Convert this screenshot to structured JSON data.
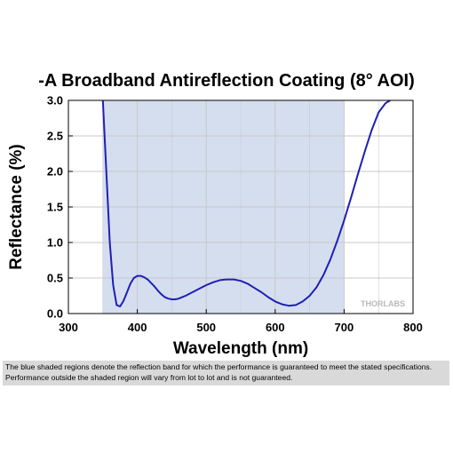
{
  "chart_data": {
    "type": "line",
    "title": "-A Broadband Antireflection Coating (8° AOI)",
    "xlabel": "Wavelength (nm)",
    "ylabel": "Reflectance (%)",
    "xlim": [
      300,
      800
    ],
    "ylim": [
      0,
      3.0
    ],
    "xticks": [
      "300",
      "400",
      "500",
      "600",
      "700",
      "800"
    ],
    "yticks": [
      "0.0",
      "0.5",
      "1.0",
      "1.5",
      "2.0",
      "2.5",
      "3.0"
    ],
    "grid": true,
    "shaded_band": [
      350,
      700
    ],
    "colors": {
      "line": "#1f1fb4",
      "band": "#d5deef",
      "grid": "#c8c8c8"
    },
    "series": [
      {
        "x": [
          350,
          355,
          360,
          365,
          370,
          375,
          380,
          385,
          390,
          395,
          400,
          405,
          410,
          415,
          420,
          425,
          430,
          435,
          440,
          445,
          450,
          455,
          460,
          465,
          470,
          480,
          490,
          500,
          510,
          520,
          530,
          540,
          550,
          560,
          570,
          580,
          590,
          600,
          610,
          620,
          630,
          640,
          650,
          660,
          670,
          680,
          690,
          700,
          710,
          720,
          730,
          740,
          750,
          760,
          767
        ],
        "y": [
          3.0,
          2.0,
          1.0,
          0.4,
          0.12,
          0.1,
          0.18,
          0.3,
          0.42,
          0.5,
          0.53,
          0.53,
          0.51,
          0.48,
          0.43,
          0.38,
          0.32,
          0.27,
          0.23,
          0.21,
          0.2,
          0.2,
          0.21,
          0.23,
          0.25,
          0.3,
          0.35,
          0.4,
          0.44,
          0.47,
          0.48,
          0.48,
          0.46,
          0.42,
          0.36,
          0.3,
          0.23,
          0.17,
          0.13,
          0.11,
          0.12,
          0.17,
          0.25,
          0.37,
          0.54,
          0.76,
          1.02,
          1.31,
          1.63,
          1.96,
          2.28,
          2.58,
          2.83,
          2.96,
          3.0
        ]
      }
    ]
  },
  "watermark": "THORLABS",
  "caption": "The blue shaded regions denote the reflection band for which the performance is guaranteed to meet the stated specifications. Performance outside the shaded region will vary from lot to lot and is not guaranteed."
}
